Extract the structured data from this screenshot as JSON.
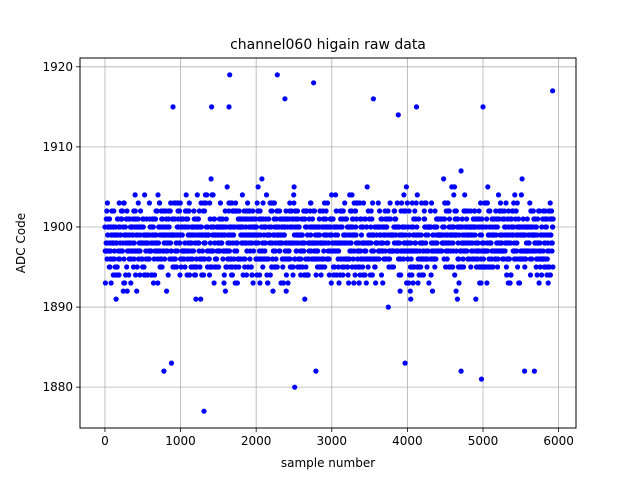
{
  "chart_data": {
    "type": "scatter",
    "title": "channel060 higain raw data",
    "xlabel": "sample number",
    "ylabel": "ADC Code",
    "xlim": [
      -330,
      6230
    ],
    "ylim": [
      1874.9,
      1921.1
    ],
    "xticks": [
      0,
      1000,
      2000,
      3000,
      4000,
      5000,
      6000
    ],
    "xtick_labels": [
      "0",
      "1000",
      "2000",
      "3000",
      "4000",
      "5000",
      "6000"
    ],
    "yticks": [
      1880,
      1890,
      1900,
      1910,
      1920
    ],
    "ytick_labels": [
      "1880",
      "1890",
      "1900",
      "1910",
      "1920"
    ],
    "grid": true,
    "marker_color": "#0000ff",
    "series": [
      {
        "x_range": [
          0,
          5930
        ],
        "n_points": 5931,
        "y_center": 1898.5,
        "y_dense_band": [
          1887,
          1910
        ],
        "x": [
          1310,
          2510,
          4980,
          780,
          880,
          2790,
          4710,
          5550,
          5680,
          1650,
          2280,
          2760,
          5920,
          3550,
          2380,
          900,
          3880,
          3970,
          4120,
          1640,
          1410,
          5000
        ],
        "y": [
          1877,
          1880,
          1881,
          1882,
          1883,
          1882,
          1882,
          1882,
          1882,
          1919,
          1919,
          1918,
          1917,
          1916,
          1916,
          1915,
          1914,
          1883,
          1915,
          1915,
          1915,
          1915
        ]
      }
    ]
  }
}
